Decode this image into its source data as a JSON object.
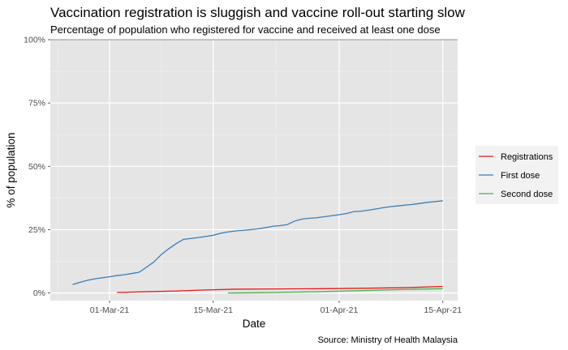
{
  "chart_data": {
    "type": "line",
    "title": "Vaccination registration is sluggish and vaccine roll-out starting slow",
    "subtitle": "Percentage of population who registered for vaccine and received at least one dose",
    "xlabel": "Date",
    "ylabel": "% of population",
    "caption": "Source: Ministry of Health Malaysia",
    "x_ticks": [
      "01-Mar-21",
      "15-Mar-21",
      "01-Apr-21",
      "15-Apr-21"
    ],
    "y_ticks": [
      "0%",
      "25%",
      "50%",
      "75%",
      "100%"
    ],
    "xlim": [
      "2021-02-21",
      "2021-04-17"
    ],
    "ylim": [
      -0.03,
      1.0
    ],
    "reference_line": 1.0,
    "grid": true,
    "legend_position": "right",
    "series": [
      {
        "name": "Registrations",
        "color": "#e41a1c",
        "points": [
          [
            "2021-03-02",
            0.002
          ],
          [
            "2021-03-06",
            0.005
          ],
          [
            "2021-03-10",
            0.008
          ],
          [
            "2021-03-14",
            0.012
          ],
          [
            "2021-03-18",
            0.015
          ],
          [
            "2021-03-24",
            0.016
          ],
          [
            "2021-03-30",
            0.017
          ],
          [
            "2021-04-05",
            0.019
          ],
          [
            "2021-04-10",
            0.021
          ],
          [
            "2021-04-15",
            0.026
          ]
        ]
      },
      {
        "name": "First dose",
        "color": "#377eb8",
        "points": [
          [
            "2021-02-24",
            0.033
          ],
          [
            "2021-02-25",
            0.042
          ],
          [
            "2021-02-26",
            0.05
          ],
          [
            "2021-02-27",
            0.056
          ],
          [
            "2021-02-28",
            0.06
          ],
          [
            "2021-03-01",
            0.064
          ],
          [
            "2021-03-02",
            0.069
          ],
          [
            "2021-03-03",
            0.072
          ],
          [
            "2021-03-04",
            0.077
          ],
          [
            "2021-03-05",
            0.082
          ],
          [
            "2021-03-06",
            0.102
          ],
          [
            "2021-03-07",
            0.123
          ],
          [
            "2021-03-08",
            0.152
          ],
          [
            "2021-03-09",
            0.175
          ],
          [
            "2021-03-10",
            0.195
          ],
          [
            "2021-03-11",
            0.212
          ],
          [
            "2021-03-12",
            0.215
          ],
          [
            "2021-03-13",
            0.219
          ],
          [
            "2021-03-14",
            0.223
          ],
          [
            "2021-03-15",
            0.228
          ],
          [
            "2021-03-16",
            0.236
          ],
          [
            "2021-03-17",
            0.241
          ],
          [
            "2021-03-18",
            0.245
          ],
          [
            "2021-03-19",
            0.247
          ],
          [
            "2021-03-20",
            0.25
          ],
          [
            "2021-03-21",
            0.253
          ],
          [
            "2021-03-22",
            0.258
          ],
          [
            "2021-03-23",
            0.263
          ],
          [
            "2021-03-24",
            0.266
          ],
          [
            "2021-03-25",
            0.27
          ],
          [
            "2021-03-26",
            0.284
          ],
          [
            "2021-03-27",
            0.292
          ],
          [
            "2021-03-28",
            0.295
          ],
          [
            "2021-03-29",
            0.297
          ],
          [
            "2021-03-30",
            0.301
          ],
          [
            "2021-03-31",
            0.305
          ],
          [
            "2021-04-01",
            0.309
          ],
          [
            "2021-04-02",
            0.314
          ],
          [
            "2021-04-03",
            0.321
          ],
          [
            "2021-04-04",
            0.323
          ],
          [
            "2021-04-05",
            0.327
          ],
          [
            "2021-04-06",
            0.332
          ],
          [
            "2021-04-07",
            0.337
          ],
          [
            "2021-04-08",
            0.341
          ],
          [
            "2021-04-09",
            0.344
          ],
          [
            "2021-04-10",
            0.347
          ],
          [
            "2021-04-11",
            0.35
          ],
          [
            "2021-04-12",
            0.354
          ],
          [
            "2021-04-13",
            0.358
          ],
          [
            "2021-04-14",
            0.361
          ],
          [
            "2021-04-15",
            0.364
          ]
        ]
      },
      {
        "name": "Second dose",
        "color": "#4daf4a",
        "points": [
          [
            "2021-03-17",
            0.0
          ],
          [
            "2021-03-21",
            0.001
          ],
          [
            "2021-03-25",
            0.003
          ],
          [
            "2021-03-29",
            0.005
          ],
          [
            "2021-04-02",
            0.008
          ],
          [
            "2021-04-06",
            0.011
          ],
          [
            "2021-04-10",
            0.014
          ],
          [
            "2021-04-15",
            0.017
          ]
        ]
      }
    ]
  }
}
